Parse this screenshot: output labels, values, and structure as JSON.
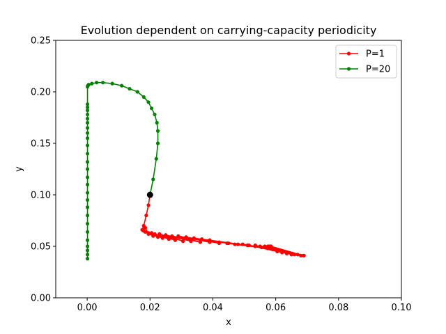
{
  "chart_data": {
    "type": "line",
    "title": "Evolution dependent on carrying-capacity periodicity",
    "xlabel": "x",
    "ylabel": "y",
    "xlim": [
      -0.01,
      0.1
    ],
    "ylim": [
      0.0,
      0.25
    ],
    "xticks": [
      0.0,
      0.02,
      0.04,
      0.06,
      0.08,
      0.1
    ],
    "xtick_labels": [
      "0.00",
      "0.02",
      "0.04",
      "0.06",
      "0.08",
      "0.10"
    ],
    "yticks": [
      0.0,
      0.05,
      0.1,
      0.15,
      0.2,
      0.25
    ],
    "ytick_labels": [
      "0.00",
      "0.05",
      "0.10",
      "0.15",
      "0.20",
      "0.25"
    ],
    "grid": false,
    "legend": "top-right",
    "start_point": {
      "x": 0.02,
      "y": 0.1,
      "color": "#000000"
    },
    "series": [
      {
        "name": "P=1",
        "color": "#ff0000",
        "x": [
          0.02,
          0.0195,
          0.0188,
          0.018,
          0.0175,
          0.0185,
          0.0195,
          0.018,
          0.021,
          0.0185,
          0.0225,
          0.0195,
          0.024,
          0.0205,
          0.026,
          0.0215,
          0.028,
          0.023,
          0.0305,
          0.025,
          0.033,
          0.027,
          0.036,
          0.029,
          0.039,
          0.0315,
          0.042,
          0.034,
          0.045,
          0.0365,
          0.048,
          0.039,
          0.051,
          0.042,
          0.0535,
          0.0445,
          0.0555,
          0.047,
          0.0575,
          0.0495,
          0.059,
          0.0515,
          0.0605,
          0.0535,
          0.062,
          0.055,
          0.0635,
          0.0565,
          0.065,
          0.0575,
          0.066,
          0.058,
          0.067,
          0.0585,
          0.068,
          0.0585,
          0.0688,
          0.0583,
          0.069,
          0.0582
        ],
        "y": [
          0.1,
          0.09,
          0.08,
          0.07,
          0.066,
          0.068,
          0.062,
          0.065,
          0.06,
          0.064,
          0.059,
          0.063,
          0.058,
          0.063,
          0.057,
          0.062,
          0.056,
          0.062,
          0.055,
          0.061,
          0.055,
          0.06,
          0.054,
          0.06,
          0.054,
          0.059,
          0.053,
          0.058,
          0.053,
          0.057,
          0.052,
          0.056,
          0.051,
          0.054,
          0.05,
          0.053,
          0.049,
          0.052,
          0.048,
          0.052,
          0.047,
          0.051,
          0.045,
          0.051,
          0.044,
          0.05,
          0.043,
          0.05,
          0.042,
          0.05,
          0.042,
          0.05,
          0.042,
          0.05,
          0.041,
          0.05,
          0.041,
          0.049,
          0.041,
          0.049
        ]
      },
      {
        "name": "P=20",
        "color": "#008000",
        "x": [
          0.02,
          0.021,
          0.022,
          0.0225,
          0.0225,
          0.0222,
          0.0215,
          0.0205,
          0.0195,
          0.018,
          0.016,
          0.0135,
          0.011,
          0.008,
          0.005,
          0.003,
          0.0015,
          0.0005,
          0.0002,
          0.0001,
          0.0001,
          0.0001,
          0.0001,
          0.0001,
          0.0001,
          0.0001,
          0.0001,
          0.0001,
          0.0001,
          0.0001,
          0.0001,
          0.0001,
          0.0001,
          0.0001,
          0.0001,
          0.0001,
          0.0001,
          0.0001,
          0.0001,
          0.0001,
          0.0001,
          0.0001,
          0.0001,
          0.0001,
          0.0001,
          0.0001
        ],
        "y": [
          0.1,
          0.115,
          0.135,
          0.15,
          0.162,
          0.17,
          0.178,
          0.184,
          0.19,
          0.195,
          0.2,
          0.203,
          0.206,
          0.208,
          0.209,
          0.209,
          0.208,
          0.207,
          0.206,
          0.205,
          0.188,
          0.185,
          0.182,
          0.178,
          0.174,
          0.17,
          0.165,
          0.16,
          0.155,
          0.148,
          0.14,
          0.132,
          0.125,
          0.117,
          0.11,
          0.102,
          0.095,
          0.088,
          0.08,
          0.072,
          0.064,
          0.056,
          0.05,
          0.046,
          0.042,
          0.038
        ]
      }
    ]
  }
}
